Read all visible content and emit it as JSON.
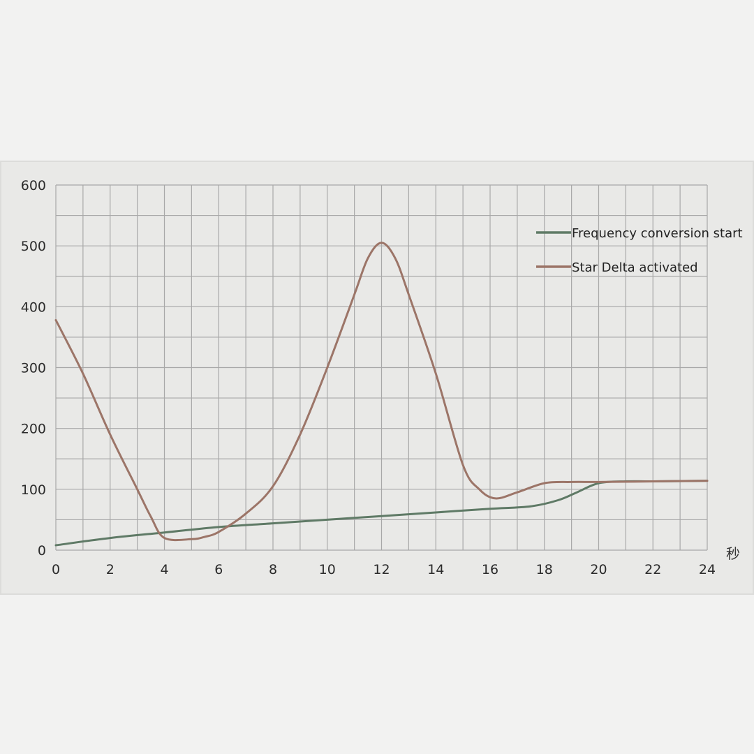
{
  "chart_data": {
    "type": "line",
    "title": "",
    "xlabel": "秒",
    "ylabel": "",
    "xlim": [
      0,
      24
    ],
    "ylim": [
      0,
      600
    ],
    "x_ticks": [
      "0",
      "2",
      "4",
      "6",
      "8",
      "10",
      "12",
      "14",
      "16",
      "18",
      "20",
      "22",
      "24"
    ],
    "y_ticks": [
      "0",
      "100",
      "200",
      "300",
      "400",
      "500",
      "600"
    ],
    "grid": true,
    "legend_position": "top-right",
    "series": [
      {
        "name": "Frequency conversion start",
        "color": "#5f7a66",
        "points": [
          [
            0,
            8
          ],
          [
            2,
            20
          ],
          [
            4,
            29
          ],
          [
            6,
            38
          ],
          [
            8,
            44
          ],
          [
            10,
            50
          ],
          [
            12,
            56
          ],
          [
            14,
            62
          ],
          [
            16,
            68
          ],
          [
            17.5,
            72
          ],
          [
            18.5,
            82
          ],
          [
            19.2,
            95
          ],
          [
            20,
            110
          ],
          [
            21,
            113
          ],
          [
            22,
            113
          ],
          [
            24,
            114
          ]
        ]
      },
      {
        "name": "Star Delta activated",
        "color": "#9c7568",
        "points": [
          [
            0,
            378
          ],
          [
            1,
            290
          ],
          [
            2,
            190
          ],
          [
            3,
            100
          ],
          [
            3.5,
            55
          ],
          [
            4,
            20
          ],
          [
            5,
            18
          ],
          [
            5.5,
            22
          ],
          [
            6,
            30
          ],
          [
            7,
            60
          ],
          [
            8,
            105
          ],
          [
            9,
            190
          ],
          [
            10,
            300
          ],
          [
            11,
            420
          ],
          [
            11.5,
            480
          ],
          [
            12,
            505
          ],
          [
            12.5,
            480
          ],
          [
            13,
            420
          ],
          [
            14,
            290
          ],
          [
            15,
            140
          ],
          [
            15.6,
            100
          ],
          [
            16.2,
            85
          ],
          [
            17,
            95
          ],
          [
            18,
            110
          ],
          [
            19,
            112
          ],
          [
            20,
            112
          ],
          [
            22,
            113
          ],
          [
            24,
            114
          ]
        ]
      }
    ]
  }
}
